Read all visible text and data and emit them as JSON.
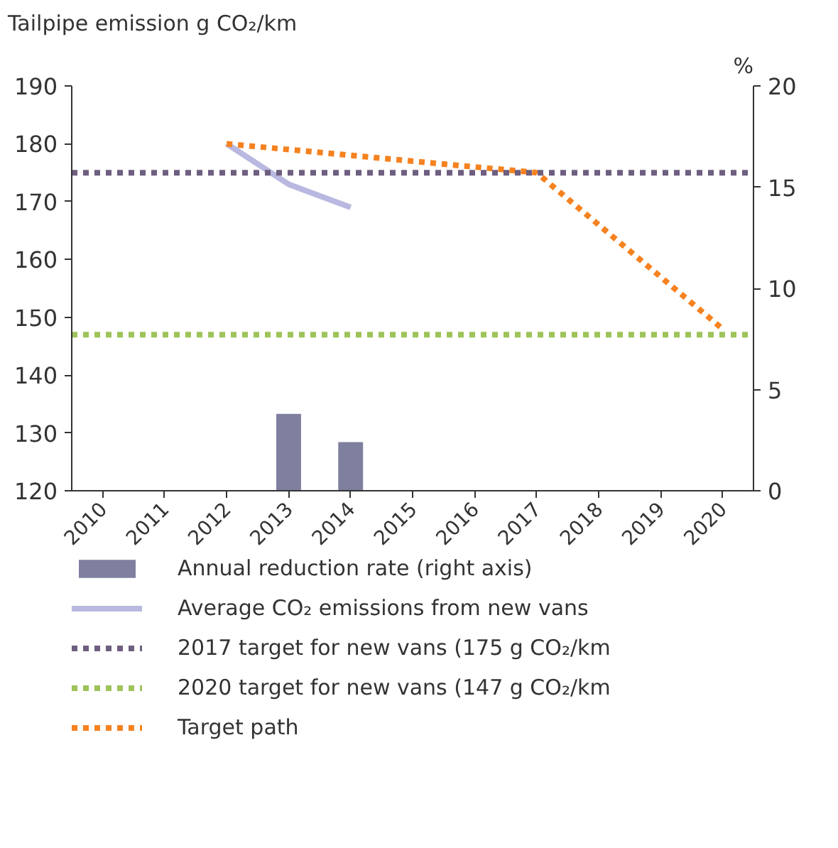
{
  "chart_data": {
    "type": "line",
    "ylabel": "Tailpipe emission g CO₂/km",
    "y2label": "%",
    "categories": [
      "2010",
      "2011",
      "2012",
      "2013",
      "2014",
      "2015",
      "2016",
      "2017",
      "2018",
      "2019",
      "2020"
    ],
    "ylim": [
      120,
      190
    ],
    "yticks": [
      120,
      130,
      140,
      150,
      160,
      170,
      180,
      190
    ],
    "y2lim": [
      0,
      20
    ],
    "y2ticks": [
      0,
      5,
      10,
      15,
      20
    ],
    "series": [
      {
        "name": "Annual reduction rate (right axis)",
        "type": "bar",
        "axis": "y2",
        "color": "#7f7f9f",
        "values": [
          null,
          null,
          null,
          3.8,
          2.4,
          null,
          null,
          null,
          null,
          null,
          null
        ]
      },
      {
        "name": "Average CO₂ emissions from new vans",
        "color": "#b8b8e0",
        "line_style": "solid",
        "values": [
          null,
          null,
          180,
          173,
          169,
          null,
          null,
          null,
          null,
          null,
          null
        ]
      },
      {
        "name": "Target path",
        "color": "#f58220",
        "line_style": "dashed",
        "values": [
          null,
          null,
          180,
          null,
          null,
          null,
          null,
          175,
          null,
          null,
          148
        ]
      }
    ],
    "ref_lines": [
      {
        "axis": "y",
        "value": 175,
        "label": "2017 target for new vans (175 g CO₂/km",
        "color": "#6e5f80",
        "line_style": "dashed"
      },
      {
        "axis": "y",
        "value": 147,
        "label": "2020 target for new vans (147 g CO₂/km",
        "color": "#9dc35a",
        "line_style": "dashed"
      }
    ],
    "grid": false,
    "legend": "bottom"
  }
}
